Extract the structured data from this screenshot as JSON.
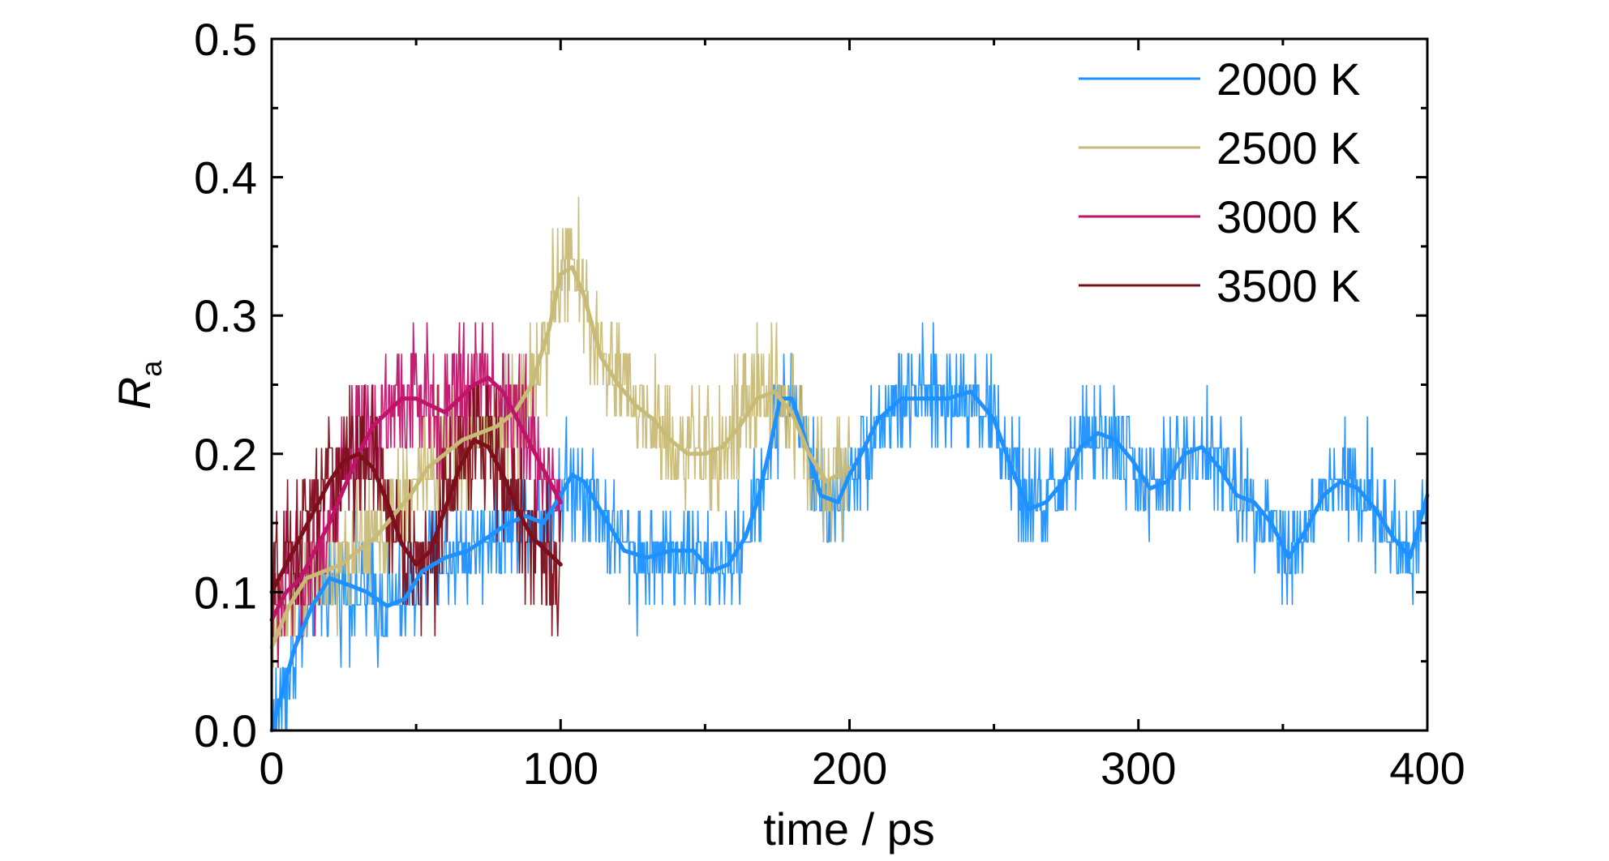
{
  "chart_data": {
    "type": "line",
    "title": "",
    "xlabel": "time / ps",
    "ylabel": {
      "main": "R",
      "subscript": "a"
    },
    "xlim": [
      0,
      400
    ],
    "ylim": [
      0.0,
      0.5
    ],
    "x_ticks": [
      "0",
      "100",
      "200",
      "300",
      "400"
    ],
    "y_ticks": [
      "0.0",
      "0.1",
      "0.2",
      "0.3",
      "0.4",
      "0.5"
    ],
    "grid": false,
    "legend_position": "top-right",
    "series": [
      {
        "name": "2000 K",
        "color": "#1e90ff",
        "x_range": [
          0,
          400
        ],
        "smooth": [
          [
            0,
            0.0
          ],
          [
            4,
            0.03
          ],
          [
            8,
            0.06
          ],
          [
            14,
            0.09
          ],
          [
            20,
            0.11
          ],
          [
            27,
            0.105
          ],
          [
            33,
            0.1
          ],
          [
            40,
            0.09
          ],
          [
            46,
            0.095
          ],
          [
            52,
            0.115
          ],
          [
            60,
            0.125
          ],
          [
            68,
            0.13
          ],
          [
            75,
            0.14
          ],
          [
            82,
            0.15
          ],
          [
            88,
            0.155
          ],
          [
            94,
            0.15
          ],
          [
            100,
            0.17
          ],
          [
            104,
            0.185
          ],
          [
            108,
            0.18
          ],
          [
            115,
            0.155
          ],
          [
            122,
            0.13
          ],
          [
            130,
            0.125
          ],
          [
            138,
            0.13
          ],
          [
            146,
            0.13
          ],
          [
            152,
            0.115
          ],
          [
            158,
            0.12
          ],
          [
            164,
            0.14
          ],
          [
            168,
            0.165
          ],
          [
            172,
            0.2
          ],
          [
            176,
            0.24
          ],
          [
            180,
            0.24
          ],
          [
            184,
            0.215
          ],
          [
            190,
            0.17
          ],
          [
            196,
            0.165
          ],
          [
            200,
            0.185
          ],
          [
            204,
            0.2
          ],
          [
            210,
            0.225
          ],
          [
            218,
            0.24
          ],
          [
            226,
            0.24
          ],
          [
            234,
            0.24
          ],
          [
            242,
            0.245
          ],
          [
            250,
            0.225
          ],
          [
            256,
            0.19
          ],
          [
            262,
            0.16
          ],
          [
            268,
            0.165
          ],
          [
            274,
            0.18
          ],
          [
            280,
            0.205
          ],
          [
            286,
            0.215
          ],
          [
            292,
            0.21
          ],
          [
            298,
            0.195
          ],
          [
            304,
            0.175
          ],
          [
            310,
            0.18
          ],
          [
            316,
            0.2
          ],
          [
            322,
            0.205
          ],
          [
            328,
            0.19
          ],
          [
            334,
            0.17
          ],
          [
            340,
            0.165
          ],
          [
            346,
            0.15
          ],
          [
            352,
            0.125
          ],
          [
            358,
            0.145
          ],
          [
            364,
            0.17
          ],
          [
            370,
            0.18
          ],
          [
            376,
            0.175
          ],
          [
            382,
            0.16
          ],
          [
            388,
            0.14
          ],
          [
            394,
            0.125
          ],
          [
            400,
            0.17
          ]
        ],
        "noise": 0.035
      },
      {
        "name": "2500 K",
        "color": "#c8bb78",
        "x_range": [
          0,
          200
        ],
        "smooth": [
          [
            0,
            0.06
          ],
          [
            6,
            0.09
          ],
          [
            12,
            0.11
          ],
          [
            18,
            0.115
          ],
          [
            24,
            0.12
          ],
          [
            30,
            0.13
          ],
          [
            36,
            0.14
          ],
          [
            42,
            0.155
          ],
          [
            48,
            0.17
          ],
          [
            54,
            0.19
          ],
          [
            60,
            0.2
          ],
          [
            66,
            0.21
          ],
          [
            72,
            0.215
          ],
          [
            78,
            0.22
          ],
          [
            84,
            0.23
          ],
          [
            90,
            0.25
          ],
          [
            96,
            0.29
          ],
          [
            100,
            0.33
          ],
          [
            104,
            0.335
          ],
          [
            108,
            0.315
          ],
          [
            114,
            0.27
          ],
          [
            120,
            0.25
          ],
          [
            126,
            0.235
          ],
          [
            132,
            0.225
          ],
          [
            138,
            0.21
          ],
          [
            144,
            0.2
          ],
          [
            150,
            0.2
          ],
          [
            156,
            0.205
          ],
          [
            162,
            0.22
          ],
          [
            168,
            0.24
          ],
          [
            174,
            0.245
          ],
          [
            180,
            0.23
          ],
          [
            186,
            0.2
          ],
          [
            192,
            0.18
          ],
          [
            200,
            0.19
          ]
        ],
        "noise": 0.04
      },
      {
        "name": "3000 K",
        "color": "#c0146a",
        "x_range": [
          0,
          100
        ],
        "smooth": [
          [
            0,
            0.08
          ],
          [
            5,
            0.1
          ],
          [
            10,
            0.11
          ],
          [
            15,
            0.13
          ],
          [
            20,
            0.15
          ],
          [
            25,
            0.175
          ],
          [
            30,
            0.2
          ],
          [
            35,
            0.22
          ],
          [
            40,
            0.23
          ],
          [
            45,
            0.24
          ],
          [
            50,
            0.24
          ],
          [
            55,
            0.235
          ],
          [
            60,
            0.23
          ],
          [
            65,
            0.24
          ],
          [
            70,
            0.25
          ],
          [
            75,
            0.255
          ],
          [
            80,
            0.245
          ],
          [
            85,
            0.225
          ],
          [
            90,
            0.205
          ],
          [
            95,
            0.185
          ],
          [
            100,
            0.165
          ]
        ],
        "noise": 0.045
      },
      {
        "name": "3500 K",
        "color": "#7d0f1a",
        "x_range": [
          0,
          100
        ],
        "smooth": [
          [
            0,
            0.1
          ],
          [
            5,
            0.12
          ],
          [
            10,
            0.14
          ],
          [
            15,
            0.16
          ],
          [
            20,
            0.18
          ],
          [
            25,
            0.195
          ],
          [
            30,
            0.2
          ],
          [
            35,
            0.19
          ],
          [
            40,
            0.165
          ],
          [
            45,
            0.135
          ],
          [
            50,
            0.12
          ],
          [
            55,
            0.13
          ],
          [
            60,
            0.16
          ],
          [
            65,
            0.19
          ],
          [
            70,
            0.21
          ],
          [
            75,
            0.205
          ],
          [
            80,
            0.185
          ],
          [
            85,
            0.16
          ],
          [
            90,
            0.14
          ],
          [
            95,
            0.13
          ],
          [
            100,
            0.12
          ]
        ],
        "noise": 0.045
      }
    ]
  }
}
